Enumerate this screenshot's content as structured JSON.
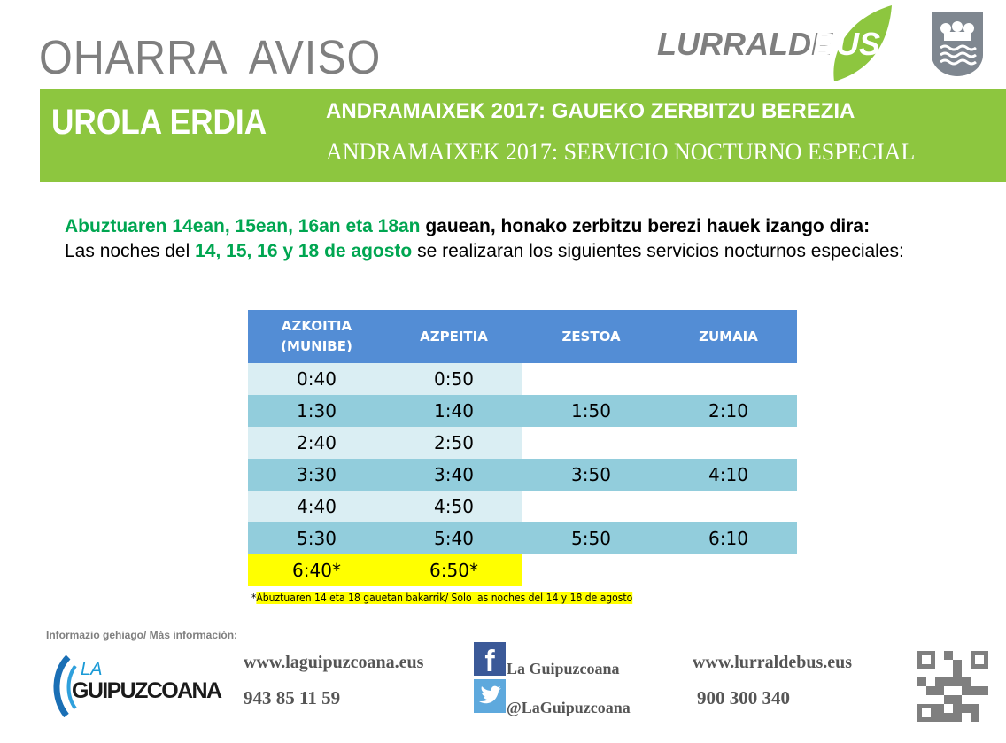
{
  "header": {
    "title": "OHARRA  AVISO",
    "logo_text": "LURRALDEBUS",
    "logo_text_gray": "LURRALDE",
    "logo_text_green": "BUS"
  },
  "banner": {
    "region": "UROLA ERDIA",
    "heading_eu": "ANDRAMAIXEK 2017: GAUEKO ZERBITZU BEREZIA",
    "heading_es": "ANDRAMAIXEK 2017: SERVICIO NOCTURNO ESPECIAL"
  },
  "intro": {
    "eu_dates": "Abuztuaren 14ean, 15ean, 16an eta 18an",
    "eu_rest": " gauean, honako zerbitzu berezi hauek izango dira:",
    "es_pre": "Las noches del ",
    "es_dates": "14, 15, 16 y 18 de agosto",
    "es_rest": " se realizaran los siguientes servicios nocturnos especiales:"
  },
  "table": {
    "headers": [
      "AZKOITIA (MUNIBE)",
      "AZPEITIA",
      "ZESTOA",
      "ZUMAIA"
    ],
    "rows": [
      [
        "0:40",
        "0:50",
        "",
        ""
      ],
      [
        "1:30",
        "1:40",
        "1:50",
        "2:10"
      ],
      [
        "2:40",
        "2:50",
        "",
        ""
      ],
      [
        "3:30",
        "3:40",
        "3:50",
        "4:10"
      ],
      [
        "4:40",
        "4:50",
        "",
        ""
      ],
      [
        "5:30",
        "5:40",
        "5:50",
        "6:10"
      ],
      [
        "6:40*",
        "6:50*",
        "",
        ""
      ]
    ]
  },
  "note": {
    "star": "*",
    "text": "Abuztuaren 14 eta 18  gauetan bakarrik/ Solo las noches  del 14 y 18 de agosto"
  },
  "footer": {
    "more_info": "Informazio gehiago/ Más información:",
    "lg_logo_la": "LA",
    "lg_logo_name": "GUIPUZCOANA",
    "lg_web": "www.laguipuzcoana.eus",
    "lg_phone": "943 85 11 59",
    "facebook": "La Guipuzcoana",
    "twitter": "@LaGuipuzcoana",
    "lb_web": "www.lurraldebus.eus",
    "lb_phone": "900 300 340"
  },
  "colors": {
    "green": "#8dc63f",
    "text_green": "#00a651",
    "table_header": "#538dd5",
    "row_dark": "#92cddc",
    "row_light": "#daeef3",
    "highlight": "#ffff00"
  }
}
